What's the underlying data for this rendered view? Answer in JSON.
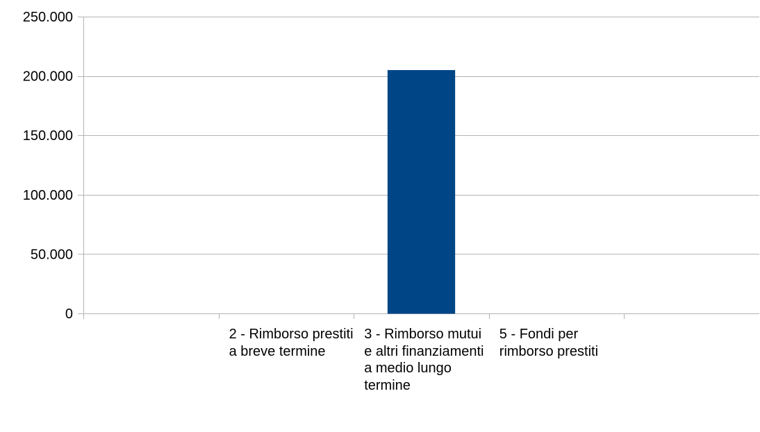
{
  "chart_data": {
    "type": "bar",
    "title": "",
    "xlabel": "",
    "ylabel": "",
    "ylim": [
      0,
      250000
    ],
    "yticks": [
      0,
      50000,
      100000,
      150000,
      200000,
      250000
    ],
    "ytick_labels": [
      "0",
      "50.000",
      "100.000",
      "150.000",
      "200.000",
      "250.000"
    ],
    "categories": [
      "",
      "2 - Rimborso prestiti a breve termine",
      "3 - Rimborso mutui e altri finanziamenti a medio lungo termine",
      "5 - Fondi per rimborso prestiti",
      ""
    ],
    "values": [
      0,
      0,
      205000,
      0,
      0
    ],
    "grid": true,
    "legend": "none",
    "colors": {
      "bar": "#004586",
      "grid": "#b3b3b3",
      "axis": "#b3b3b3",
      "text": "#000000"
    }
  }
}
